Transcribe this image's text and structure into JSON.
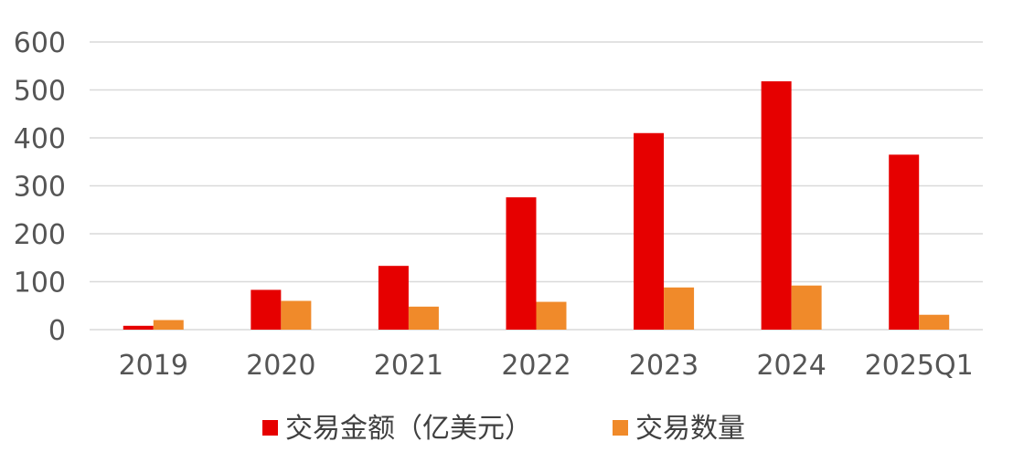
{
  "chart_data": {
    "type": "bar",
    "title": "",
    "xlabel": "",
    "ylabel": "",
    "categories": [
      "2019",
      "2020",
      "2021",
      "2022",
      "2023",
      "2024",
      "2025Q1"
    ],
    "series": [
      {
        "name": "交易金额（亿美元）",
        "color": "#e60000",
        "values": [
          8,
          83,
          133,
          276,
          410,
          518,
          365
        ]
      },
      {
        "name": "交易数量",
        "color": "#f08a2a",
        "values": [
          20,
          60,
          48,
          58,
          88,
          92,
          31
        ]
      }
    ],
    "ylim": [
      0,
      600
    ],
    "yticks": [
      0,
      100,
      200,
      300,
      400,
      500,
      600
    ],
    "grid": true,
    "legend_position": "bottom"
  }
}
